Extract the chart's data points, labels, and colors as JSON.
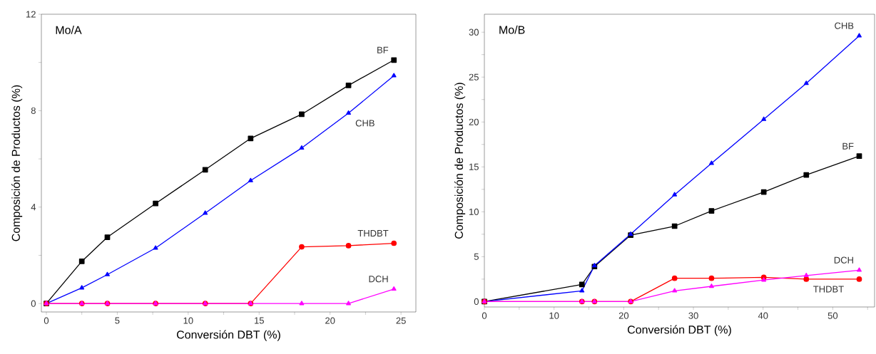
{
  "chart_data": [
    {
      "type": "line",
      "annotations": [
        "Mo/A"
      ],
      "xlabel": "Conversión DBT (%)",
      "ylabel": "Composición de Productos (%)",
      "xlim": [
        -0.35,
        26.05
      ],
      "ylim": [
        -0.35,
        12
      ],
      "xticks": [
        0,
        {
          "value": 2.5,
          "label": null
        },
        5,
        {
          "value": 7.5,
          "label": null
        },
        10,
        {
          "value": 12.5,
          "label": null
        },
        15,
        {
          "value": 17.5,
          "label": null
        },
        20,
        {
          "value": 22.5,
          "label": null
        },
        25
      ],
      "yticks": [
        0,
        {
          "value": 2,
          "label": null
        },
        4,
        {
          "value": 6,
          "label": null
        },
        8,
        {
          "value": 10,
          "label": null
        },
        12
      ],
      "x": [
        0,
        2.5,
        4.3,
        7.7,
        11.2,
        14.4,
        18,
        21.3,
        24.5
      ],
      "series": [
        {
          "name": "BF",
          "color": "#000000",
          "marker": "square",
          "values": [
            0,
            1.75,
            2.75,
            4.15,
            5.55,
            6.85,
            7.85,
            9.05,
            10.1
          ]
        },
        {
          "name": "CHB",
          "color": "#0000ff",
          "marker": "triangle",
          "values": [
            0,
            0.65,
            1.2,
            2.3,
            3.75,
            5.1,
            6.45,
            7.9,
            9.45
          ]
        },
        {
          "name": "THDBT",
          "color": "#ff0000",
          "marker": "circle",
          "values": [
            0,
            0,
            0,
            0,
            0,
            0,
            2.35,
            2.4,
            2.5
          ]
        },
        {
          "name": "DCH",
          "color": "#ff00ff",
          "marker": "triangle",
          "values": [
            0,
            0,
            0,
            0,
            0,
            0,
            0,
            0,
            0.6
          ]
        }
      ]
    },
    {
      "type": "line",
      "annotations": [
        "Mo/B"
      ],
      "xlabel": "Conversión DBT (%)",
      "ylabel": "Composición de Productos (%)",
      "xlim": [
        0,
        56
      ],
      "ylim": [
        -0.6,
        32
      ],
      "xticks": [
        0,
        {
          "value": 5,
          "label": null
        },
        10,
        {
          "value": 15,
          "label": null
        },
        20,
        {
          "value": 25,
          "label": null
        },
        30,
        {
          "value": 35,
          "label": null
        },
        40,
        {
          "value": 45,
          "label": null
        },
        50,
        {
          "value": 55,
          "label": null
        }
      ],
      "yticks": [
        0,
        {
          "value": 2.5,
          "label": null
        },
        5,
        {
          "value": 7.5,
          "label": null
        },
        10,
        {
          "value": 12.5,
          "label": null
        },
        15,
        {
          "value": 17.5,
          "label": null
        },
        20,
        {
          "value": 22.5,
          "label": null
        },
        25,
        {
          "value": 27.5,
          "label": null
        },
        30
      ],
      "x": [
        0,
        14,
        15.8,
        21,
        27.3,
        32.6,
        40.1,
        46.2,
        53.8
      ],
      "series": [
        {
          "name": "BF",
          "color": "#000000",
          "marker": "square",
          "values": [
            0,
            1.9,
            3.9,
            7.4,
            8.4,
            10.1,
            12.2,
            14.1,
            16.2
          ]
        },
        {
          "name": "CHB",
          "color": "#0000ff",
          "marker": "triangle",
          "values": [
            0,
            1.2,
            4.0,
            7.5,
            11.9,
            15.4,
            20.3,
            24.3,
            29.6
          ]
        },
        {
          "name": "THDBT",
          "color": "#ff0000",
          "marker": "circle",
          "values": [
            0,
            0,
            0,
            0,
            2.6,
            2.6,
            2.7,
            2.5,
            2.5
          ]
        },
        {
          "name": "DCH",
          "color": "#ff00ff",
          "marker": "triangle",
          "values": [
            0,
            0,
            0,
            0,
            1.2,
            1.7,
            2.4,
            2.9,
            3.5
          ]
        }
      ]
    }
  ]
}
